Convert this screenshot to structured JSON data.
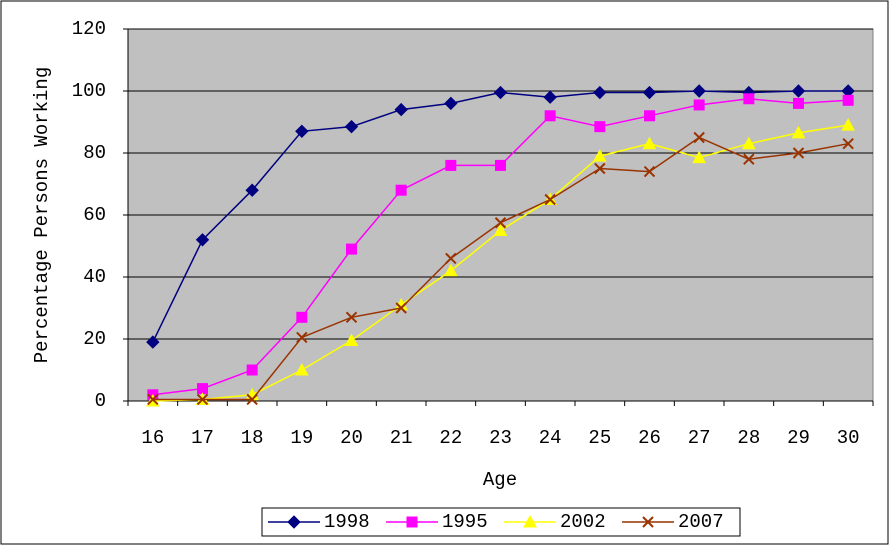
{
  "chart_data": {
    "type": "line",
    "x_label": "Age",
    "y_label": "Percentage Persons Working",
    "categories": [
      "16",
      "17",
      "18",
      "19",
      "20",
      "21",
      "22",
      "23",
      "24",
      "25",
      "26",
      "27",
      "28",
      "29",
      "30"
    ],
    "series": [
      {
        "name": "1998",
        "color": "#000080",
        "marker": "diamond",
        "values": [
          19,
          52,
          68,
          87,
          88.5,
          94,
          96,
          99.5,
          98,
          99.5,
          99.5,
          100,
          99.5,
          100,
          100
        ]
      },
      {
        "name": "1995",
        "color": "#ff00ff",
        "marker": "square",
        "values": [
          2,
          4,
          10,
          27,
          49,
          68,
          76,
          76,
          92,
          88.5,
          92,
          95.5,
          97.5,
          96,
          97
        ]
      },
      {
        "name": "2002",
        "color": "#ffff00",
        "marker": "triangle",
        "values": [
          0,
          0.5,
          2,
          10,
          19.5,
          31,
          42,
          55,
          65,
          79,
          83,
          78.5,
          83,
          86.5,
          89
        ]
      },
      {
        "name": "2007",
        "color": "#993300",
        "marker": "x",
        "values": [
          0.5,
          0.5,
          0.5,
          20.5,
          27,
          30,
          46,
          57.5,
          65,
          75,
          74,
          85,
          78,
          80,
          83
        ]
      }
    ],
    "ylim": [
      0,
      120
    ],
    "yticks": [
      0,
      20,
      40,
      60,
      80,
      100,
      120
    ],
    "grid": true,
    "legend": "bottom"
  }
}
